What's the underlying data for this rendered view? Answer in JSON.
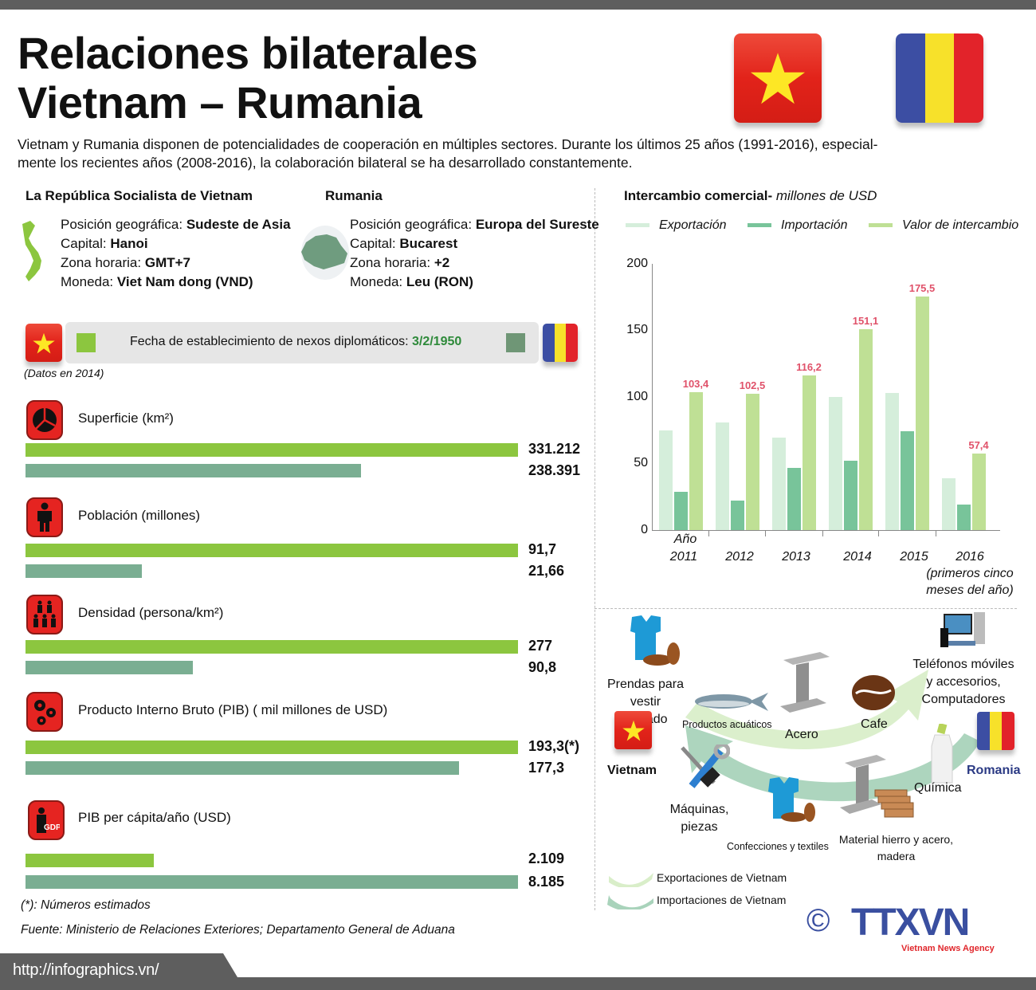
{
  "header": {
    "title_line1": "Relaciones bilaterales",
    "title_line2": "Vietnam – Rumania",
    "intro_line1": "Vietnam y Rumania disponen de potencialidades de cooperación en múltiples sectores. Durante los últimos 25 años (1991-2016), especial-",
    "intro_line2": "mente los recientes años (2008-2016),  la colaboración bilateral se ha desarrollado constantemente."
  },
  "countries": {
    "vietnam": {
      "name": "La República Socialista de Vietnam",
      "position_label": "Posición geográfica: ",
      "position_value": "Sudeste de Asia",
      "capital_label": "Capital: ",
      "capital_value": "Hanoi",
      "timezone_label": "Zona horaria: ",
      "timezone_value": "GMT+7",
      "currency_label": "Moneda: ",
      "currency_value": "Viet Nam dong (VND)"
    },
    "romania": {
      "name": "Rumania",
      "position_label": "Posición geográfica: ",
      "position_value": "Europa del Sureste",
      "capital_label": "Capital: ",
      "capital_value": "Bucarest",
      "timezone_label": "Zona horaria: ",
      "timezone_value": "+2",
      "currency_label": "Moneda: ",
      "currency_value": "Leu (RON)"
    }
  },
  "diplomatic": {
    "label": "Fecha de establecimiento de nexos diplomáticos: ",
    "date": "3/2/1950",
    "data_note": "(Datos en 2014)"
  },
  "colors": {
    "vietnam_bar": "#8cc63f",
    "romania_bar": "#7aae92",
    "export": "#d5eedb",
    "import": "#78c49a",
    "exchange": "#bfe095",
    "value_label": "#e0526a",
    "ttxvn_blue": "#3a4fa0",
    "ttxvn_red": "#e0262b"
  },
  "metrics": [
    {
      "label": "Superficie (km²)",
      "icon": "pie-chart-icon",
      "vn_value": "331.212",
      "ro_value": "238.391",
      "vn_pct": 100,
      "ro_pct": 72
    },
    {
      "label": "Población (millones)",
      "icon": "person-icon",
      "vn_value": "91,7",
      "ro_value": "21,66",
      "vn_pct": 100,
      "ro_pct": 23.6
    },
    {
      "label": "Densidad (persona/km²)",
      "icon": "people-group-icon",
      "vn_value": "277",
      "ro_value": "90,8",
      "vn_pct": 100,
      "ro_pct": 32.8
    },
    {
      "label": "Producto Interno Bruto (PIB) ( mil millones de USD)",
      "icon": "gears-icon",
      "vn_value": "193,3(*)",
      "ro_value": "177,3",
      "vn_pct": 100,
      "ro_pct": 88
    },
    {
      "label": "PIB per cápita/año (USD)",
      "icon": "gdp-person-icon",
      "vn_value": "2.109",
      "ro_value": "8.185",
      "vn_pct": 25.8,
      "ro_pct": 100
    }
  ],
  "notes": {
    "estimated": "(*): Números estimados",
    "source": "Fuente: Ministerio de Relaciones Exteriores; Departamento General de Aduana"
  },
  "footer": {
    "url": "http://infographics.vn/"
  },
  "chart_data": {
    "type": "bar",
    "title": "Intercambio comercial-",
    "subtitle": "millones de USD",
    "categories": [
      "2011",
      "2012",
      "2013",
      "2014",
      "2015",
      "2016"
    ],
    "category_labels": [
      "Año 2011",
      "2012",
      "2013",
      "2014",
      "2015",
      "2016 (primeros cinco meses del año)"
    ],
    "x_prefix": "Año",
    "last_category_note": "(primeros cinco",
    "last_category_note2": "meses del año)",
    "series": [
      {
        "name": "Exportación",
        "values": [
          75,
          81,
          69.5,
          100,
          103,
          39
        ]
      },
      {
        "name": "Importación",
        "values": [
          29,
          22,
          47,
          52,
          74,
          19
        ]
      },
      {
        "name": "Valor de intercambio",
        "values": [
          103.4,
          102.5,
          116.2,
          151.1,
          175.5,
          57.4
        ]
      }
    ],
    "value_labels": [
      "103,4",
      "102,5",
      "116,2",
      "151,1",
      "175,5",
      "57,4"
    ],
    "yticks": [
      "0",
      "50",
      "100",
      "150",
      "200"
    ],
    "ylim": [
      0,
      200
    ],
    "xlabel": "Año",
    "ylabel": "",
    "grid": false,
    "legend_position": "top"
  },
  "trade": {
    "vietnam_label": "Vietnam",
    "romania_label": "Romania",
    "exports": [
      "Productos acuáticos",
      "Acero",
      "Cafe",
      "Teléfonos móviles",
      "y accesorios,",
      "Computadores"
    ],
    "imports": [
      "Máquinas,",
      "piezas",
      "Confecciones y textiles",
      "Material hierro y acero,",
      "madera",
      "Química"
    ],
    "clothing_top": [
      "Prendas para vestir",
      "calzado"
    ],
    "legend_export": "Exportaciones de Vietnam",
    "legend_import": "Importaciones de Vietnam"
  },
  "logo": {
    "copyright": "©",
    "name": "TTXVN",
    "tagline": "Vietnam News Agency"
  }
}
